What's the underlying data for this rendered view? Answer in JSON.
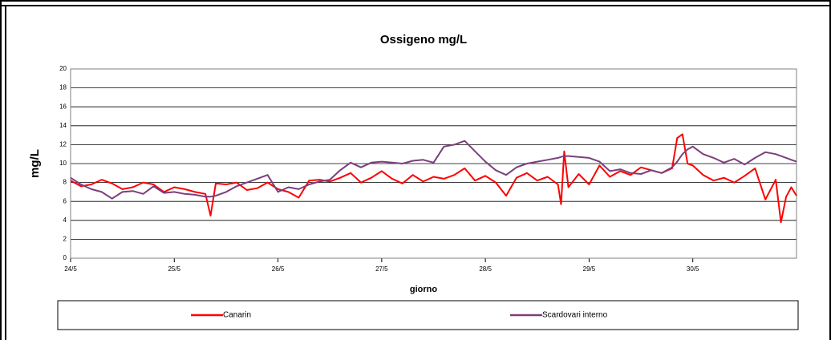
{
  "chart_data": {
    "type": "line",
    "title": "Ossigeno mg/L",
    "xlabel": "giorno",
    "ylabel": "mg/L",
    "x": [
      24.0,
      24.1,
      24.2,
      24.3,
      24.4,
      24.5,
      24.6,
      24.7,
      24.8,
      24.9,
      25.0,
      25.1,
      25.2,
      25.3,
      25.35,
      25.4,
      25.5,
      25.6,
      25.7,
      25.8,
      25.9,
      26.0,
      26.1,
      26.2,
      26.3,
      26.4,
      26.5,
      26.6,
      26.7,
      26.8,
      26.9,
      27.0,
      27.1,
      27.2,
      27.3,
      27.4,
      27.5,
      27.6,
      27.7,
      27.8,
      27.9,
      28.0,
      28.1,
      28.2,
      28.3,
      28.4,
      28.5,
      28.6,
      28.7,
      28.73,
      28.76,
      28.8,
      28.9,
      29.0,
      29.1,
      29.2,
      29.3,
      29.4,
      29.5,
      29.6,
      29.7,
      29.8,
      29.85,
      29.9,
      29.95,
      30.0,
      30.1,
      30.2,
      30.3,
      30.4,
      30.5,
      30.6,
      30.7,
      30.8,
      30.85,
      30.9,
      30.95,
      31.0
    ],
    "series": [
      {
        "name": "Canarin",
        "color": "#ff0000",
        "values": [
          8.2,
          7.6,
          7.8,
          8.3,
          7.9,
          7.3,
          7.5,
          8.0,
          7.8,
          7.0,
          7.5,
          7.3,
          7.0,
          6.8,
          4.5,
          7.9,
          7.8,
          8.0,
          7.2,
          7.4,
          8.0,
          7.3,
          7.0,
          6.4,
          8.2,
          8.3,
          8.1,
          8.5,
          9.0,
          8.0,
          8.5,
          9.2,
          8.4,
          7.9,
          8.8,
          8.1,
          8.6,
          8.4,
          8.8,
          9.5,
          8.2,
          8.7,
          8.0,
          6.6,
          8.5,
          9.0,
          8.2,
          8.6,
          7.8,
          5.7,
          11.3,
          7.5,
          8.9,
          7.8,
          9.8,
          8.6,
          9.2,
          8.8,
          9.6,
          9.3,
          9.0,
          9.5,
          12.7,
          13.1,
          10.0,
          9.8,
          8.8,
          8.2,
          8.5,
          8.0,
          8.7,
          9.5,
          6.2,
          8.3,
          3.8,
          6.5,
          7.5,
          6.6
        ]
      },
      {
        "name": "Scardovari interno",
        "color": "#7b3f7b",
        "values": [
          8.5,
          7.8,
          7.3,
          7.0,
          6.3,
          7.0,
          7.1,
          6.8,
          7.6,
          6.9,
          7.0,
          6.8,
          6.7,
          6.5,
          6.5,
          6.6,
          7.0,
          7.6,
          8.0,
          8.4,
          8.8,
          7.0,
          7.5,
          7.3,
          7.8,
          8.1,
          8.3,
          9.3,
          10.1,
          9.6,
          10.1,
          10.2,
          10.1,
          10.0,
          10.3,
          10.4,
          10.1,
          11.8,
          12.0,
          12.4,
          11.3,
          10.2,
          9.3,
          8.8,
          9.6,
          10.0,
          10.2,
          10.4,
          10.6,
          10.7,
          10.8,
          10.8,
          10.7,
          10.6,
          10.2,
          9.2,
          9.4,
          9.0,
          8.9,
          9.3,
          9.0,
          9.6,
          10.2,
          11.0,
          11.5,
          11.8,
          11.0,
          10.6,
          10.1,
          10.5,
          9.9,
          10.6,
          11.2,
          11.0,
          10.8,
          10.6,
          10.4,
          10.2
        ]
      }
    ],
    "xlim": [
      24,
      31
    ],
    "xticks": [
      {
        "value": 24,
        "label": "24/5"
      },
      {
        "value": 25,
        "label": "25/5"
      },
      {
        "value": 26,
        "label": "26/5"
      },
      {
        "value": 27,
        "label": "27/5"
      },
      {
        "value": 28,
        "label": "28/5"
      },
      {
        "value": 29,
        "label": "29/5"
      },
      {
        "value": 30,
        "label": "30/5"
      }
    ],
    "ylim": [
      0,
      20
    ],
    "yticks": [
      0,
      2,
      4,
      6,
      8,
      10,
      12,
      14,
      16,
      18,
      20
    ],
    "grid": true,
    "legend": "bottom"
  }
}
